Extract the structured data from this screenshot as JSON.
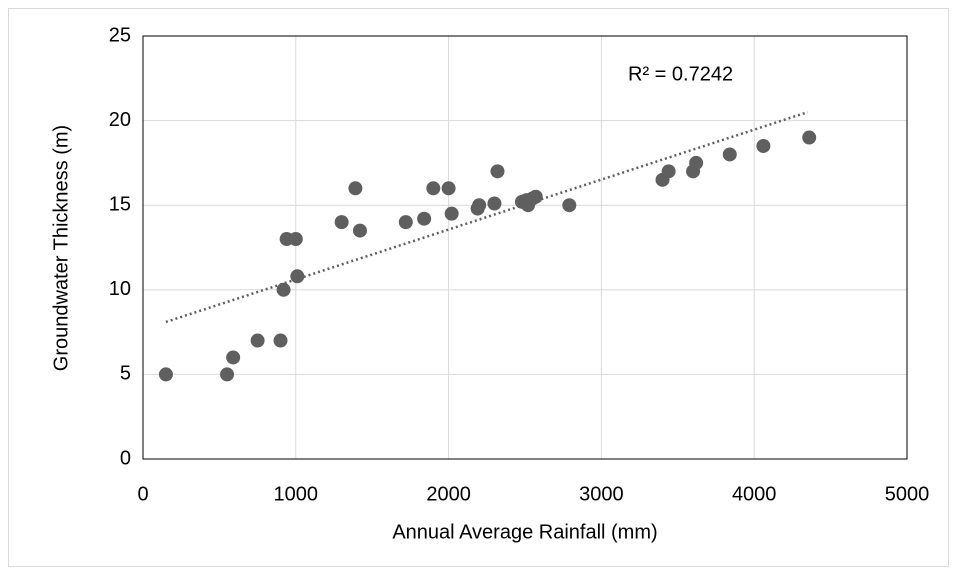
{
  "chart_data": {
    "type": "scatter",
    "xlabel": "Annual Average Rainfall (mm)",
    "ylabel": "Groundwater Thickness (m)",
    "annotation": "R² = 0.7242",
    "color": "#5f5f5f",
    "x": [
      150,
      550,
      590,
      750,
      900,
      920,
      940,
      1000,
      1010,
      1300,
      1390,
      1420,
      1720,
      1840,
      1900,
      2000,
      2020,
      2190,
      2200,
      2300,
      2320,
      2480,
      2510,
      2520,
      2550,
      2570,
      2790,
      3400,
      3440,
      3600,
      3620,
      3840,
      4060,
      4360
    ],
    "values": [
      5,
      5,
      6,
      7,
      7,
      10,
      13,
      13,
      10.8,
      14,
      16,
      13.5,
      14,
      14.2,
      16,
      16,
      14.5,
      14.8,
      15,
      15.1,
      17,
      15.2,
      15.3,
      15,
      15.4,
      15.5,
      15,
      16.5,
      17,
      17,
      17.5,
      18,
      18.5,
      19
    ],
    "trendline": {
      "x": [
        150,
        4350
      ],
      "values": [
        8.1,
        20.5
      ],
      "color": "#5f5f5f"
    },
    "xlim": [
      0,
      5000
    ],
    "xticks": [
      0,
      1000,
      2000,
      3000,
      4000,
      5000
    ],
    "ylim": [
      0,
      25
    ],
    "yticks": [
      0,
      5,
      10,
      15,
      20,
      25
    ],
    "grid": true
  }
}
